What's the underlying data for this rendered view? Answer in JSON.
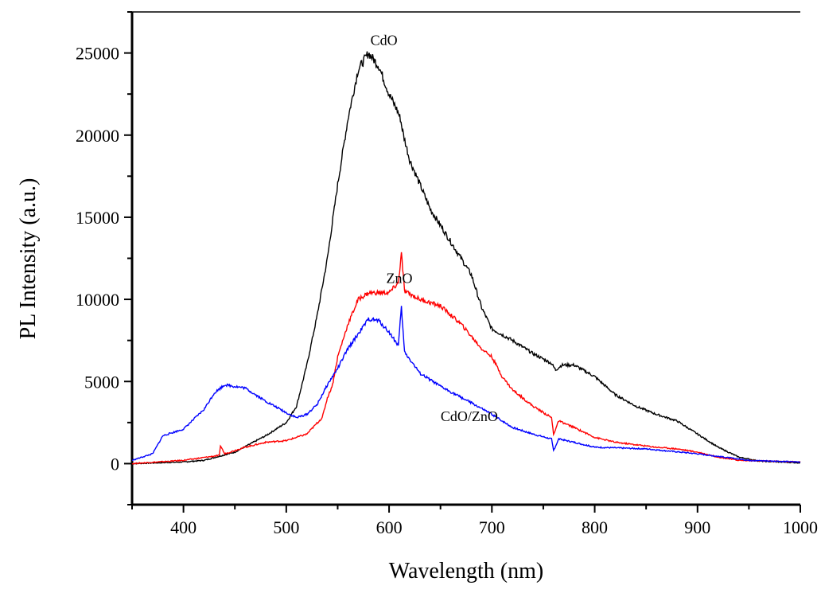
{
  "chart_data": {
    "type": "line",
    "title": "",
    "xlabel": "Wavelength (nm)",
    "ylabel": "PL Intensity (a.u.)",
    "xlim": [
      350,
      1000
    ],
    "ylim": [
      -2500,
      27500
    ],
    "xticks": [
      400,
      500,
      600,
      700,
      800,
      900,
      1000
    ],
    "yticks": [
      0,
      5000,
      10000,
      15000,
      20000,
      25000
    ],
    "grid": false,
    "legend": "none",
    "series": [
      {
        "name": "CdO",
        "color": "#000000",
        "x": [
          350,
          400,
          420,
          450,
          480,
          500,
          510,
          520,
          530,
          540,
          550,
          560,
          570,
          580,
          590,
          600,
          608,
          611,
          614,
          620,
          640,
          660,
          680,
          690,
          700,
          720,
          740,
          758,
          762,
          768,
          780,
          800,
          820,
          840,
          860,
          880,
          900,
          920,
          940,
          960,
          1000
        ],
        "y": [
          0,
          100,
          200,
          700,
          1700,
          2500,
          3500,
          6000,
          9000,
          12500,
          17000,
          21000,
          24000,
          25000,
          24200,
          22500,
          21500,
          21000,
          20000,
          18500,
          15500,
          13500,
          11500,
          9500,
          8200,
          7500,
          6700,
          6100,
          5700,
          6000,
          6000,
          5300,
          4200,
          3500,
          3000,
          2600,
          1800,
          1000,
          400,
          150,
          50
        ]
      },
      {
        "name": "ZnO",
        "color": "#ff0000",
        "x": [
          350,
          400,
          435,
          436,
          440,
          460,
          480,
          500,
          520,
          535,
          540,
          545,
          550,
          560,
          570,
          580,
          600,
          609,
          612,
          615,
          630,
          650,
          670,
          690,
          700,
          710,
          720,
          740,
          758,
          760,
          765,
          780,
          800,
          820,
          860,
          880,
          900,
          920,
          940,
          1000
        ],
        "y": [
          0,
          200,
          500,
          1100,
          600,
          1000,
          1300,
          1400,
          1800,
          2800,
          4000,
          4800,
          6500,
          8500,
          10000,
          10400,
          10400,
          11000,
          12800,
          10500,
          10000,
          9600,
          8500,
          7000,
          6500,
          5300,
          4500,
          3500,
          2800,
          1800,
          2600,
          2200,
          1600,
          1300,
          1000,
          900,
          700,
          400,
          200,
          100
        ]
      },
      {
        "name": "CdO/ZnO",
        "color": "#0000ff",
        "x": [
          350,
          370,
          380,
          390,
          400,
          420,
          430,
          440,
          460,
          480,
          500,
          510,
          520,
          530,
          540,
          550,
          560,
          580,
          590,
          600,
          609,
          612,
          615,
          630,
          650,
          680,
          700,
          720,
          740,
          758,
          760,
          765,
          780,
          800,
          850,
          900,
          950,
          1000
        ],
        "y": [
          200,
          600,
          1700,
          1900,
          2100,
          3300,
          4300,
          4800,
          4600,
          3800,
          3100,
          2800,
          3000,
          3600,
          4800,
          5800,
          7000,
          8800,
          8700,
          8000,
          7200,
          9500,
          6800,
          5500,
          4700,
          3700,
          3000,
          2200,
          1800,
          1500,
          800,
          1500,
          1300,
          1000,
          900,
          600,
          200,
          100
        ]
      }
    ],
    "annotations": [
      {
        "text": "CdO",
        "x": 595,
        "y": 25500
      },
      {
        "text": "ZnO",
        "x": 610,
        "y": 11000
      },
      {
        "text": "CdO/ZnO",
        "x": 678,
        "y": 2600
      }
    ]
  }
}
